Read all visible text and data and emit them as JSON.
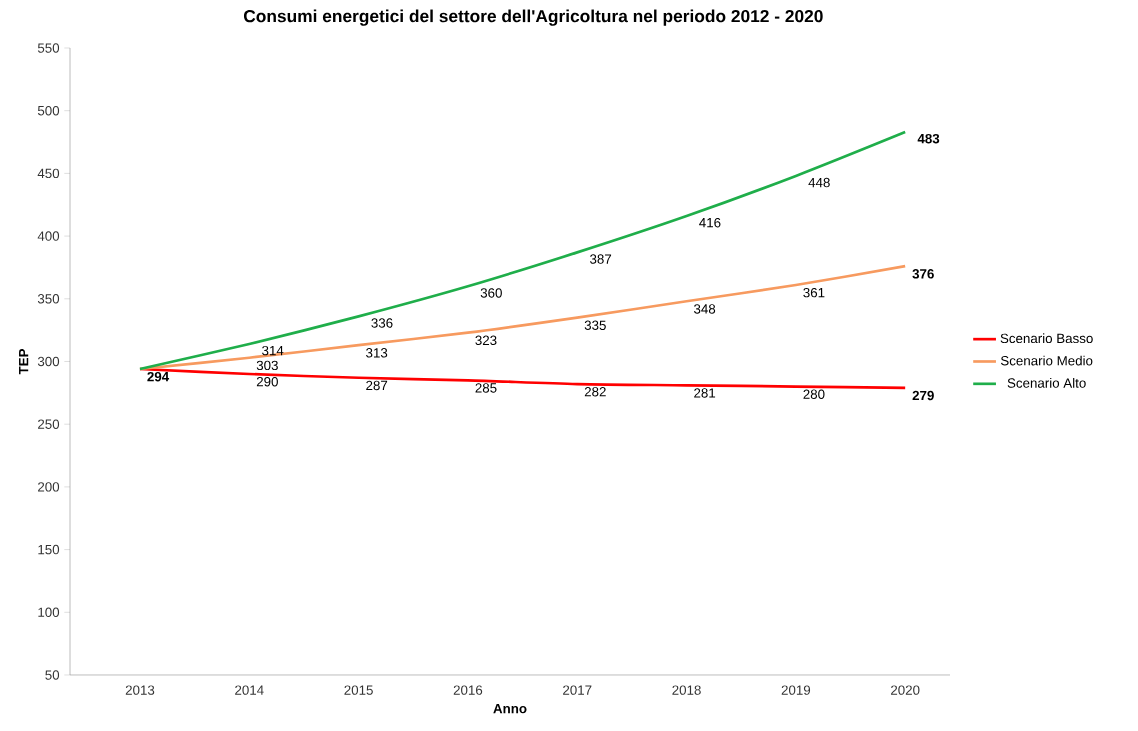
{
  "chart_data": {
    "type": "line",
    "title": "Consumi energetici del settore dell'Agricoltura nel periodo 2012 - 2020",
    "xlabel": "Anno",
    "ylabel": "TEP",
    "categories": [
      "2013",
      "2014",
      "2015",
      "2016",
      "2017",
      "2018",
      "2019",
      "2020"
    ],
    "series": [
      {
        "name": "Scenario Basso",
        "color": "#ff0000",
        "values": [
          294,
          290,
          287,
          285,
          282,
          281,
          280,
          279
        ],
        "value_labels": [
          "294",
          "290",
          "287",
          "285",
          "282",
          "281",
          "280",
          "279"
        ]
      },
      {
        "name": "Scenario Medio",
        "color": "#f79a5f",
        "values": [
          294,
          303,
          313,
          323,
          335,
          348,
          361,
          376
        ],
        "value_labels": [
          null,
          "303",
          "313",
          "323",
          "335",
          "348",
          "361",
          "376"
        ]
      },
      {
        "name": "Scenario Alto",
        "color": "#1fae4a",
        "values": [
          294,
          314,
          336,
          360,
          387,
          416,
          448,
          483
        ],
        "value_labels": [
          null,
          "314",
          "336",
          "360",
          "387",
          "416",
          "448",
          "483"
        ]
      }
    ],
    "ylim": [
      50,
      550
    ],
    "yticks": [
      50,
      100,
      150,
      200,
      250,
      300,
      350,
      400,
      450,
      500,
      550
    ],
    "legend": "right",
    "grid": false,
    "marker": "none",
    "line_style": "solid"
  }
}
